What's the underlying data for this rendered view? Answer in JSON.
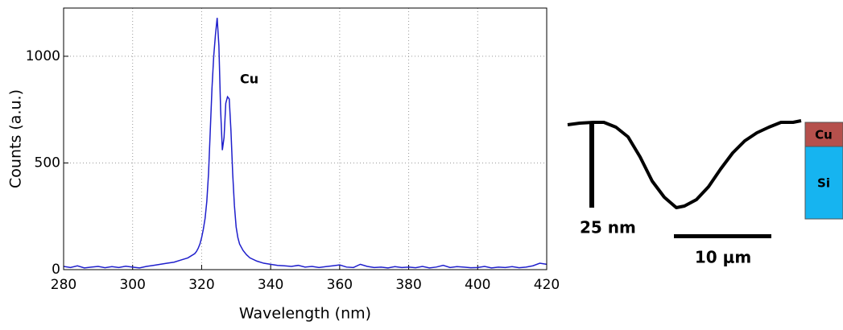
{
  "chart_data": {
    "type": "line",
    "xlabel": "Wavelength (nm)",
    "ylabel": "Counts (a.u.)",
    "annotation": "Cu",
    "x": [
      280,
      282,
      284,
      286,
      288,
      290,
      292,
      294,
      296,
      298,
      300,
      302,
      304,
      306,
      308,
      310,
      312,
      314,
      316,
      318,
      318.5,
      319,
      319.5,
      320,
      320.5,
      321,
      321.5,
      322,
      322.5,
      323,
      323.5,
      324,
      324.5,
      325,
      325.5,
      326,
      326.5,
      327,
      327.5,
      328,
      328.5,
      329,
      329.5,
      330,
      330.5,
      331,
      332,
      333,
      334,
      336,
      338,
      340,
      342,
      344,
      346,
      348,
      350,
      352,
      354,
      356,
      358,
      360,
      362,
      364,
      366,
      368,
      370,
      372,
      374,
      376,
      378,
      380,
      382,
      384,
      386,
      388,
      390,
      392,
      394,
      396,
      398,
      400,
      402,
      404,
      406,
      408,
      410,
      412,
      414,
      416,
      418,
      420
    ],
    "series": [
      {
        "color": "#1f1fcc",
        "values": [
          15,
          10,
          18,
          8,
          12,
          15,
          9,
          14,
          10,
          16,
          12,
          8,
          15,
          20,
          25,
          30,
          35,
          45,
          55,
          75,
          85,
          100,
          120,
          150,
          190,
          240,
          320,
          450,
          650,
          850,
          1000,
          1100,
          1180,
          1050,
          750,
          560,
          620,
          780,
          810,
          800,
          650,
          450,
          300,
          200,
          150,
          120,
          90,
          70,
          55,
          40,
          30,
          25,
          20,
          18,
          15,
          20,
          12,
          15,
          10,
          14,
          18,
          22,
          12,
          10,
          25,
          15,
          10,
          12,
          8,
          14,
          10,
          12,
          9,
          15,
          8,
          12,
          20,
          10,
          14,
          12,
          9,
          10,
          15,
          8,
          12,
          10,
          14,
          9,
          12,
          18,
          30,
          25
        ]
      }
    ],
    "xlim": [
      280,
      420
    ],
    "ylim": [
      0,
      1226
    ],
    "xticks": [
      280,
      300,
      320,
      340,
      360,
      380,
      400,
      420
    ],
    "yticks": [
      0,
      500,
      1000
    ],
    "grid": true
  },
  "inset": {
    "height_bar_label": "25 nm",
    "width_bar_label": "10 μm",
    "cu_label": "Cu",
    "si_label": "Si"
  }
}
